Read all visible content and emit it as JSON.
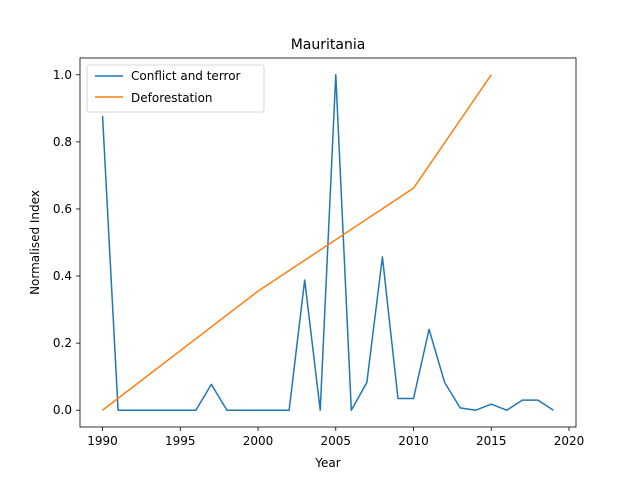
{
  "chart_data": {
    "type": "line",
    "title": "Mauritania",
    "xlabel": "Year",
    "ylabel": "Normalised Index",
    "xlim": [
      1988.55,
      2020.45
    ],
    "ylim": [
      -0.05,
      1.05
    ],
    "xticks": [
      1990,
      1995,
      2000,
      2005,
      2010,
      2015,
      2020
    ],
    "yticks": [
      0.0,
      0.2,
      0.4,
      0.6,
      0.8,
      1.0
    ],
    "ytick_labels": [
      "0.0",
      "0.2",
      "0.4",
      "0.6",
      "0.8",
      "1.0"
    ],
    "grid": false,
    "legend_position": "top-left",
    "series": [
      {
        "name": "Conflict and terror",
        "color": "#1f77b4",
        "x": [
          1990,
          1991,
          1992,
          1993,
          1994,
          1995,
          1996,
          1997,
          1998,
          1999,
          2000,
          2001,
          2002,
          2003,
          2004,
          2005,
          2006,
          2007,
          2008,
          2009,
          2010,
          2011,
          2012,
          2013,
          2014,
          2015,
          2016,
          2017,
          2018,
          2019
        ],
        "y": [
          0.877,
          0.0,
          0.0,
          0.0,
          0.0,
          0.0,
          0.0,
          0.077,
          0.0,
          0.0,
          0.0,
          0.0,
          0.0,
          0.388,
          0.0,
          1.0,
          0.0,
          0.083,
          0.457,
          0.035,
          0.035,
          0.241,
          0.083,
          0.007,
          0.0,
          0.018,
          0.0,
          0.03,
          0.03,
          0.0
        ]
      },
      {
        "name": "Deforestation",
        "color": "#ff7f0e",
        "x": [
          1990,
          2000,
          2010,
          2015
        ],
        "y": [
          0.0,
          0.355,
          0.662,
          1.0
        ]
      }
    ]
  }
}
